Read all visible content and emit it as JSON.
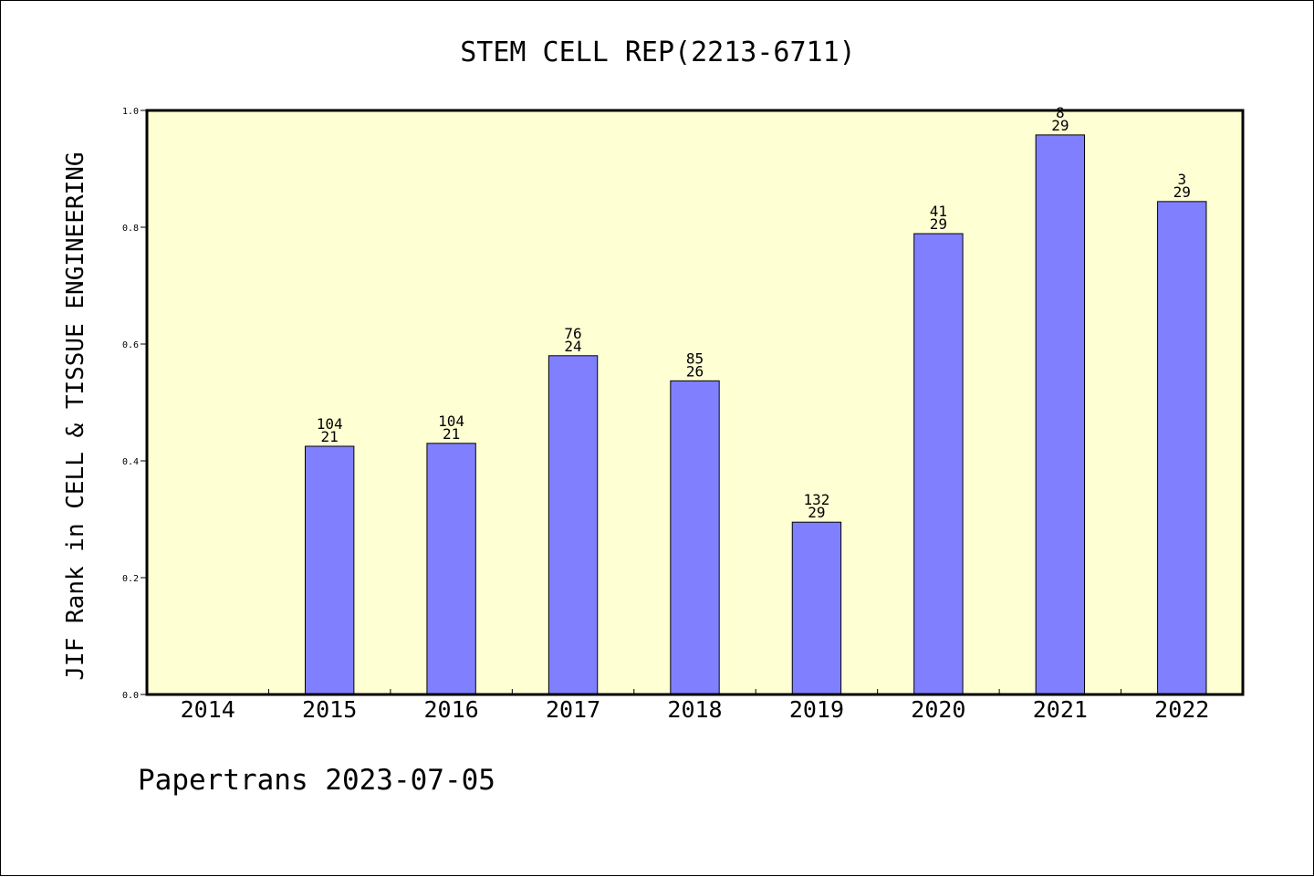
{
  "chart_data": {
    "type": "bar",
    "title": "STEM CELL REP(2213-6711)",
    "xlabel": "",
    "ylabel": "JIF Rank in CELL & TISSUE ENGINEERING",
    "categories": [
      "2014",
      "2015",
      "2016",
      "2017",
      "2018",
      "2019",
      "2020",
      "2021",
      "2022"
    ],
    "values": [
      null,
      0.425,
      0.43,
      0.58,
      0.537,
      0.295,
      0.789,
      0.958,
      0.844
    ],
    "bar_labels": [
      [
        "",
        ""
      ],
      [
        "104",
        "21"
      ],
      [
        "104",
        "21"
      ],
      [
        "76",
        "24"
      ],
      [
        "85",
        "26"
      ],
      [
        "132",
        "29"
      ],
      [
        "41",
        "29"
      ],
      [
        "8",
        "29"
      ],
      [
        "3",
        "29"
      ]
    ],
    "ylim": [
      0,
      1.0
    ],
    "yticks": [
      "0.0",
      "0.2",
      "0.4",
      "0.6",
      "0.8",
      "1.0"
    ],
    "grid": false,
    "colors": {
      "bar": "#8080ff",
      "plot_background": "#ffffd4",
      "axis": "#000000"
    }
  },
  "footer": {
    "text": "Papertrans 2023-07-05"
  }
}
